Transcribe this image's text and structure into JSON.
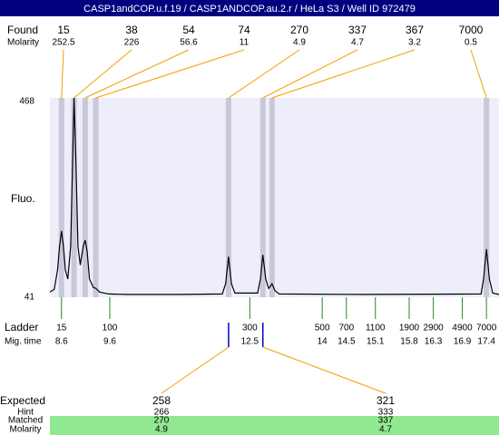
{
  "chart_data": {
    "type": "electropherogram",
    "title": "CASP1andCOP.u.f.19 / CASP1ANDCOP.au.2.r / HeLa S3 / Well ID 972479",
    "found_label": "Found",
    "molarity_label": "Molarity",
    "y_label": "Fluo.",
    "ylim": [
      41,
      468
    ],
    "yticks": [
      41,
      468
    ],
    "xlim": [
      8.36,
      17.66
    ],
    "color": "#000000",
    "peaks": [
      {
        "size": 15,
        "molarity": 252.5,
        "time": 8.6
      },
      {
        "size": 38,
        "molarity": 226,
        "time": 8.86
      },
      {
        "size": 54,
        "molarity": 56.6,
        "time": 9.09
      },
      {
        "size": 74,
        "molarity": 11,
        "time": 9.31
      },
      {
        "size": 270,
        "molarity": 4.9,
        "time": 12.06
      },
      {
        "size": 337,
        "molarity": 4.7,
        "time": 12.77
      },
      {
        "size": 367,
        "molarity": 3.2,
        "time": 12.96
      },
      {
        "size": 7000,
        "molarity": 0.5,
        "time": 17.4
      }
    ],
    "trace": {
      "x": [
        8.36,
        8.45,
        8.52,
        8.56,
        8.6,
        8.64,
        8.68,
        8.73,
        8.79,
        8.83,
        8.86,
        8.9,
        8.94,
        8.99,
        9.05,
        9.09,
        9.13,
        9.18,
        9.26,
        9.31,
        9.39,
        9.58,
        9.95,
        11.08,
        11.93,
        12.0,
        12.06,
        12.12,
        12.19,
        12.66,
        12.72,
        12.77,
        12.83,
        12.89,
        12.93,
        12.96,
        13.02,
        13.11,
        14.84,
        17.29,
        17.34,
        17.4,
        17.46,
        17.53,
        17.66
      ],
      "y": [
        52,
        58,
        100,
        150,
        183,
        150,
        100,
        80,
        150,
        330,
        468,
        330,
        150,
        110,
        150,
        163,
        140,
        80,
        62,
        60,
        52,
        48,
        47,
        47,
        48,
        70,
        128,
        70,
        50,
        50,
        80,
        132,
        80,
        60,
        65,
        70,
        55,
        48,
        47,
        48,
        80,
        144,
        80,
        50,
        47
      ]
    },
    "ladder_label": "Ladder",
    "time_label": "Mig. time",
    "ladder": {
      "sizes": [
        15,
        100,
        300,
        500,
        700,
        1100,
        1900,
        2900,
        4900,
        7000
      ],
      "times": [
        8.6,
        9.6,
        12.5,
        14,
        14.5,
        15.1,
        15.8,
        16.3,
        16.9,
        17.4
      ]
    },
    "expected_label": "Expected",
    "hint_label": "Hint",
    "matched_label": "Matched",
    "expected_molarity_label": "Molarity",
    "expected": [
      {
        "expected": 258,
        "hint": 266,
        "matched": 270,
        "molarity": 4.9
      },
      {
        "expected": 321,
        "hint": 333,
        "matched": 337,
        "molarity": 4.7
      }
    ]
  }
}
